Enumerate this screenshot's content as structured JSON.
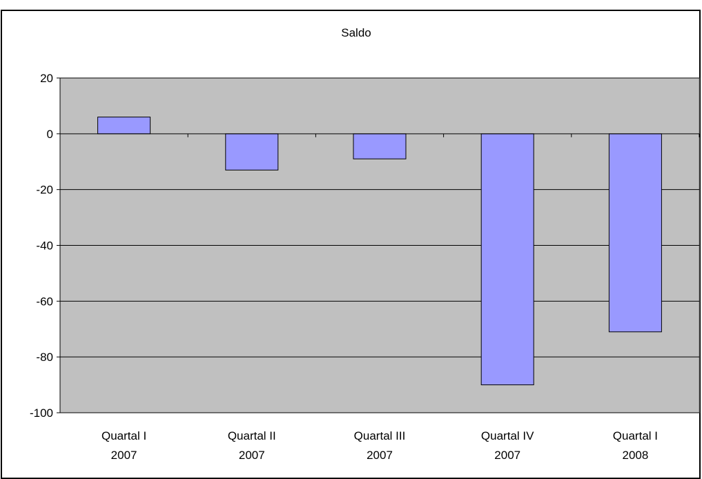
{
  "chart_data": {
    "type": "bar",
    "title": "Saldo",
    "categories": [
      [
        "Quartal I",
        "2007"
      ],
      [
        "Quartal II",
        "2007"
      ],
      [
        "Quartal III",
        "2007"
      ],
      [
        "Quartal IV",
        "2007"
      ],
      [
        "Quartal I",
        "2008"
      ]
    ],
    "values": [
      6,
      -13,
      -9,
      -90,
      -71
    ],
    "ylim": [
      -100,
      20
    ],
    "yticks": [
      "20",
      "0",
      "-20",
      "-40",
      "-60",
      "-80",
      "-100"
    ],
    "ytick_values": [
      20,
      0,
      -20,
      -40,
      -60,
      -80,
      -100
    ],
    "grid": true,
    "legend": "none",
    "colors": {
      "bar_fill": "#9999ff",
      "plot_background": "#c0c0c0",
      "gridline": "#000000"
    }
  }
}
